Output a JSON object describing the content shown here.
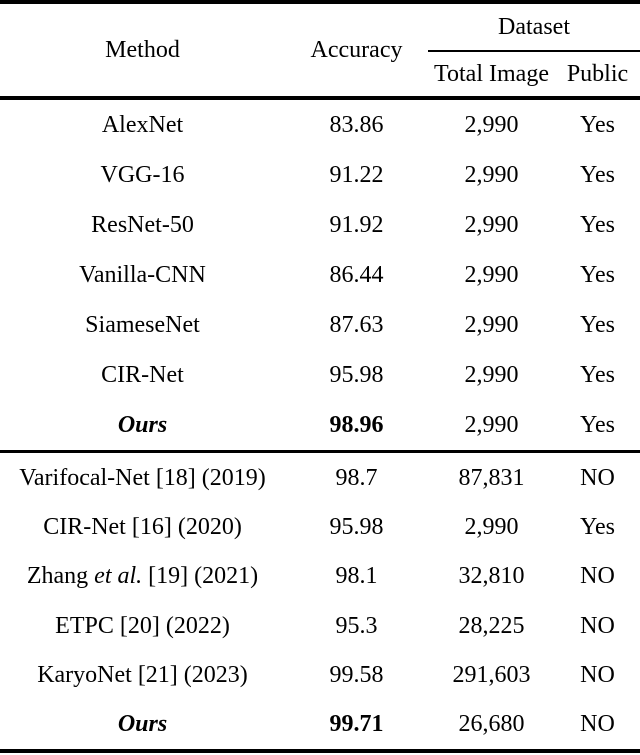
{
  "colors": {
    "text": "#000000",
    "rule": "#000000",
    "background": "#ffffff"
  },
  "table": {
    "header": {
      "method": "Method",
      "accuracy": "Accuracy",
      "dataset": "Dataset",
      "total_image": "Total Image",
      "public": "Public"
    },
    "section1": [
      {
        "method": "AlexNet",
        "accuracy": "83.86",
        "total_image": "2,990",
        "public": "Yes"
      },
      {
        "method": "VGG-16",
        "accuracy": "91.22",
        "total_image": "2,990",
        "public": "Yes"
      },
      {
        "method": "ResNet-50",
        "accuracy": "91.92",
        "total_image": "2,990",
        "public": "Yes"
      },
      {
        "method": "Vanilla-CNN",
        "accuracy": "86.44",
        "total_image": "2,990",
        "public": "Yes"
      },
      {
        "method": "SiameseNet",
        "accuracy": "87.63",
        "total_image": "2,990",
        "public": "Yes"
      },
      {
        "method": "CIR-Net",
        "accuracy": "95.98",
        "total_image": "2,990",
        "public": "Yes"
      },
      {
        "method": "Ours",
        "accuracy": "98.96",
        "total_image": "2,990",
        "public": "Yes"
      }
    ],
    "section2": [
      {
        "method": "Varifocal-Net [18] (2019)",
        "accuracy": "98.7",
        "total_image": "87,831",
        "public": "NO"
      },
      {
        "method": "CIR-Net [16] (2020)",
        "accuracy": "95.98",
        "total_image": "2,990",
        "public": "Yes"
      },
      {
        "method_parts": {
          "pre": "Zhang ",
          "italic": "et al.",
          "post": " [19] (2021)"
        },
        "accuracy": "98.1",
        "total_image": "32,810",
        "public": "NO"
      },
      {
        "method": "ETPC [20] (2022)",
        "accuracy": "95.3",
        "total_image": "28,225",
        "public": "NO"
      },
      {
        "method": "KaryoNet [21] (2023)",
        "accuracy": "99.58",
        "total_image": "291,603",
        "public": "NO"
      },
      {
        "method": "Ours",
        "accuracy": "99.71",
        "total_image": "26,680",
        "public": "NO"
      }
    ]
  }
}
